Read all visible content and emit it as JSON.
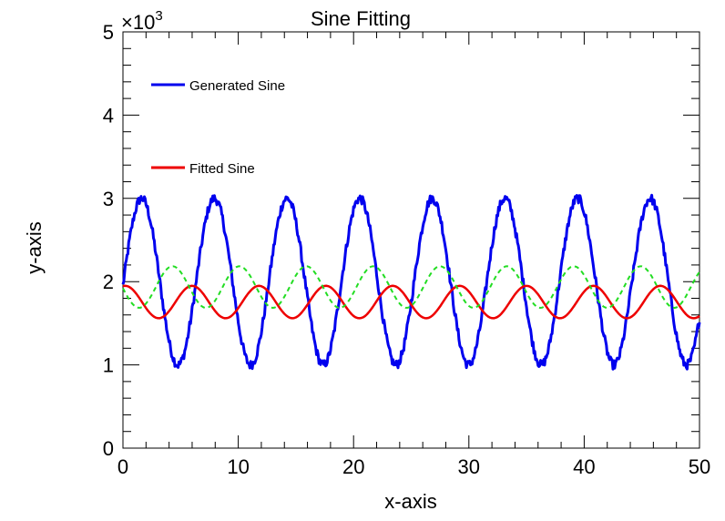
{
  "chart_data": {
    "type": "line",
    "title": "Sine Fitting",
    "xlabel": "x-axis",
    "ylabel": "y-axis",
    "xlim": [
      0,
      50
    ],
    "ylim": [
      0,
      5000
    ],
    "y_multiplier_label": "×10",
    "y_multiplier_exp": "3",
    "grid": false,
    "legend_placement": "top-left",
    "x_ticks": [
      0,
      10,
      20,
      30,
      40,
      50
    ],
    "x_tick_labels": [
      "0",
      "10",
      "20",
      "30",
      "40",
      "50"
    ],
    "y_ticks": [
      0,
      1000,
      2000,
      3000,
      4000,
      5000
    ],
    "y_tick_labels": [
      "0",
      "1",
      "2",
      "3",
      "4",
      "5"
    ],
    "series": [
      {
        "name": "Generated Sine",
        "color": "#0000ee",
        "style": "solid",
        "model": {
          "amplitude": 1000,
          "period": 6.3,
          "phase_x0": 0.05,
          "offset": 2000,
          "noise": 55
        },
        "x_range": [
          0,
          50
        ]
      },
      {
        "name": "Fitted Sine",
        "color": "#ee0000",
        "style": "solid",
        "model": {
          "amplitude": 195,
          "period": 5.8,
          "phase_x0": 4.55,
          "offset": 1755
        },
        "x_range": [
          0,
          50
        ]
      },
      {
        "name": "",
        "color": "#22dd22",
        "style": "dashed",
        "model": {
          "amplitude": 250,
          "period": 5.8,
          "phase_x0": 2.85,
          "offset": 1935
        },
        "x_range": [
          0,
          50
        ]
      }
    ]
  }
}
